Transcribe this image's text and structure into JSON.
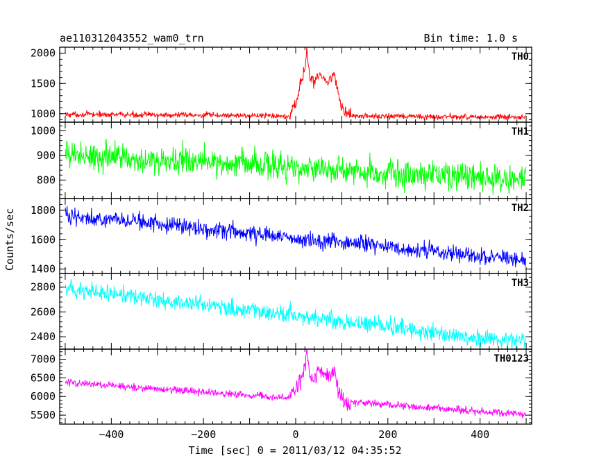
{
  "header": {
    "left_title": "ae110312043552_wam0_trn",
    "right_title": "Bin time: 1.0 s"
  },
  "chart_data": {
    "type": "line",
    "title": "ae110312043552_wam0_trn",
    "subtitle": "Bin time: 1.0 s",
    "xlabel": "Time [sec] 0 = 2011/03/12 04:35:52",
    "ylabel": "Counts/sec",
    "xlim": [
      -512,
      512
    ],
    "x_ticks": [
      -400,
      -200,
      0,
      200,
      400
    ],
    "x_tick_labels": [
      "−400",
      "−200",
      "0",
      "200",
      "400"
    ],
    "grid": false,
    "x_step": 1.0,
    "x_start": -500,
    "x_end": 499,
    "panels": [
      {
        "name": "TH0",
        "color": "#ff0000",
        "ylim": [
          860,
          2100
        ],
        "y_ticks": [
          1000,
          1500,
          2000
        ],
        "baseline_start": 990,
        "baseline_end": 940,
        "noise": 45,
        "peak_value": 2100,
        "peak_time": 24,
        "burst": [
          [
            -12,
            1000
          ],
          [
            0,
            1150
          ],
          [
            10,
            1500
          ],
          [
            20,
            1700
          ],
          [
            24,
            2050
          ],
          [
            30,
            1600
          ],
          [
            40,
            1550
          ],
          [
            50,
            1650
          ],
          [
            60,
            1600
          ],
          [
            70,
            1500
          ],
          [
            80,
            1650
          ],
          [
            85,
            1700
          ],
          [
            90,
            1400
          ],
          [
            100,
            1100
          ],
          [
            110,
            1020
          ],
          [
            120,
            980
          ]
        ],
        "description": "approx. 1000 counts/sec baseline with a burst of about 1400-2100 counts/sec between 0 and 100 s"
      },
      {
        "name": "TH1",
        "color": "#00ff00",
        "ylim": [
          725,
          1035
        ],
        "y_ticks": [
          800,
          900,
          1000
        ],
        "baseline_start": 905,
        "baseline_end": 800,
        "noise": 55,
        "description": "slow decline from about 905 to 800 counts/sec"
      },
      {
        "name": "TH2",
        "color": "#0000ff",
        "ylim": [
          1370,
          1880
        ],
        "y_ticks": [
          1400,
          1600,
          1800
        ],
        "baseline_start": 1770,
        "baseline_end": 1455,
        "noise": 55,
        "description": "decline from about 1770 to 1455 counts/sec"
      },
      {
        "name": "TH3",
        "color": "#00ffff",
        "ylim": [
          2300,
          2910
        ],
        "y_ticks": [
          2400,
          2600,
          2800
        ],
        "baseline_start": 2790,
        "baseline_end": 2350,
        "noise": 70,
        "description": "decline from about 2790 to 2350 counts/sec"
      },
      {
        "name": "TH0123",
        "color": "#ff00ff",
        "ylim": [
          5260,
          7270
        ],
        "y_ticks": [
          5500,
          6000,
          6500,
          7000
        ],
        "baseline_start": 6380,
        "baseline_end": 5520,
        "noise": 95,
        "peak_value": 7250,
        "peak_time": 24,
        "burst": [
          [
            -12,
            6000
          ],
          [
            0,
            6150
          ],
          [
            10,
            6500
          ],
          [
            20,
            6700
          ],
          [
            24,
            7200
          ],
          [
            30,
            6600
          ],
          [
            40,
            6550
          ],
          [
            50,
            6700
          ],
          [
            60,
            6600
          ],
          [
            70,
            6500
          ],
          [
            80,
            6650
          ],
          [
            85,
            6700
          ],
          [
            90,
            6300
          ],
          [
            100,
            5950
          ],
          [
            110,
            5800
          ],
          [
            120,
            5780
          ]
        ],
        "description": "sum light curve: about 6380 declining to 5520 counts/sec, with burst near 0-100 s peaking above 7000"
      }
    ]
  }
}
